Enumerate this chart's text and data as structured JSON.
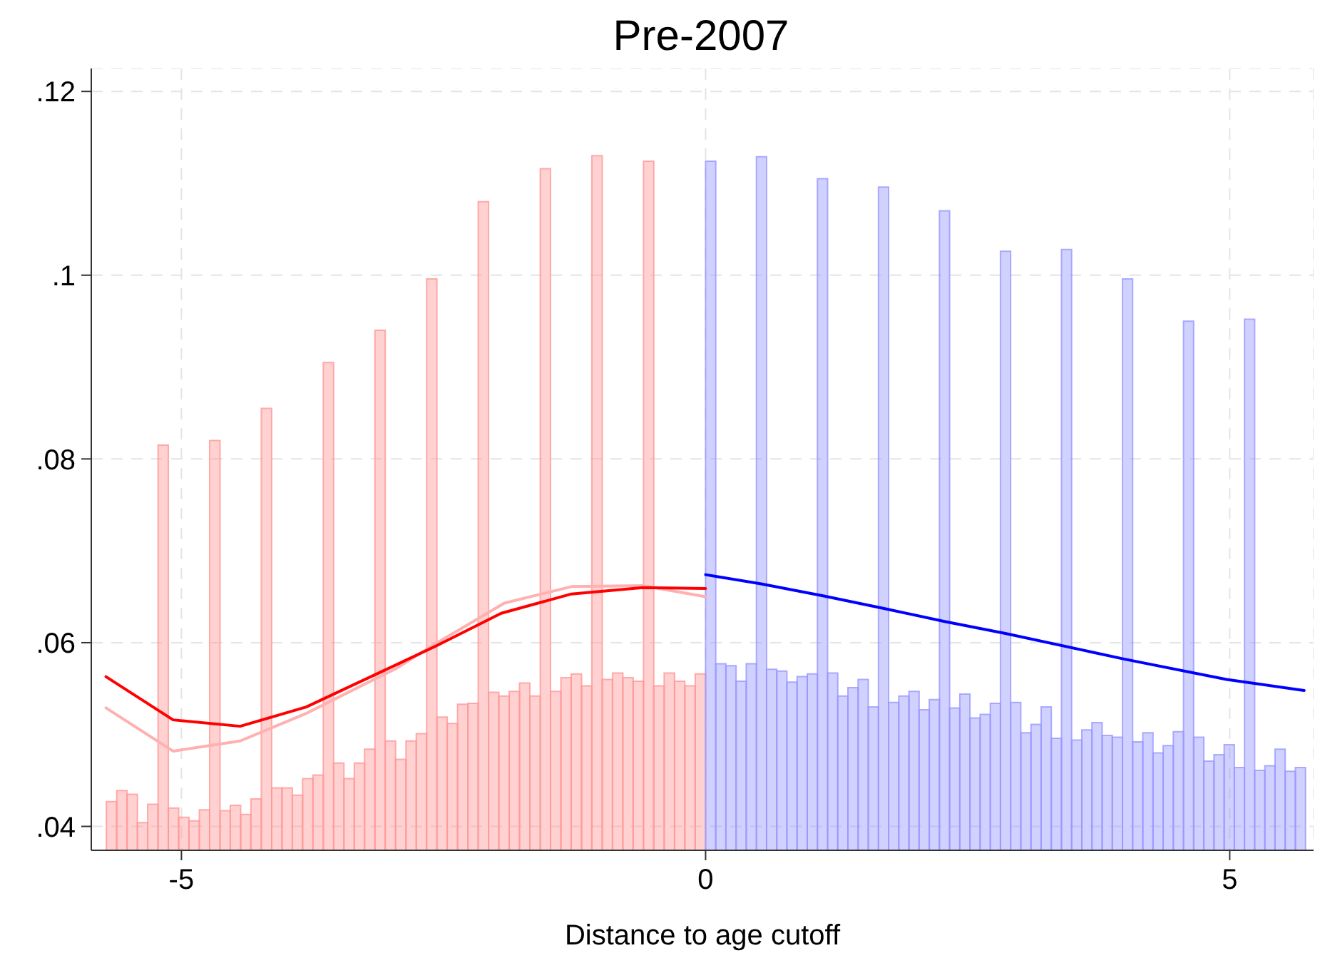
{
  "chart_data": {
    "type": "histogram",
    "title": "Pre-2007",
    "xlabel": "Distance to age cutoff",
    "xlim": [
      -5.86,
      5.8
    ],
    "xticks": [
      -5,
      0,
      5
    ],
    "ylim": [
      0.0374,
      0.1225
    ],
    "yticks": [
      {
        "value": 0.04,
        "label": ".04"
      },
      {
        "value": 0.06,
        "label": ".06"
      },
      {
        "value": 0.08,
        "label": ".08"
      },
      {
        "value": 0.1,
        "label": ".1"
      },
      {
        "value": 0.12,
        "label": ".12"
      }
    ],
    "grid": true,
    "series": [
      {
        "color": "#ff9999",
        "bins": [
          -5.716,
          -5.617,
          -5.519,
          -5.42,
          -5.322,
          -5.223,
          -5.125,
          -5.026,
          -4.928,
          -4.829,
          -4.731,
          -4.632,
          -4.534,
          -4.435,
          -4.337,
          -4.238,
          -4.139,
          -4.041,
          -3.942,
          -3.844,
          -3.745,
          -3.647,
          -3.548,
          -3.45,
          -3.351,
          -3.253,
          -3.154,
          -3.056,
          -2.957,
          -2.858,
          -2.76,
          -2.661,
          -2.563,
          -2.464,
          -2.366,
          -2.267,
          -2.169,
          -2.07,
          -1.972,
          -1.873,
          -1.775,
          -1.676,
          -1.577,
          -1.479,
          -1.38,
          -1.282,
          -1.183,
          -1.085,
          -0.986,
          -0.888,
          -0.789,
          -0.691,
          -0.592,
          -0.494,
          -0.395,
          -0.296,
          -0.198,
          -0.099,
          0
        ],
        "values": [
          0.0427,
          0.0439,
          0.0435,
          0.0404,
          0.0424,
          0.0815,
          0.042,
          0.041,
          0.0406,
          0.0418,
          0.082,
          0.0417,
          0.0423,
          0.0413,
          0.043,
          0.0855,
          0.0442,
          0.0442,
          0.0434,
          0.0452,
          0.0456,
          0.0905,
          0.0469,
          0.0452,
          0.0469,
          0.0484,
          0.094,
          0.0493,
          0.0473,
          0.0493,
          0.0501,
          0.0996,
          0.0519,
          0.0512,
          0.0533,
          0.0534,
          0.108,
          0.0546,
          0.0542,
          0.0547,
          0.0556,
          0.0542,
          0.1116,
          0.0547,
          0.0562,
          0.0566,
          0.0553,
          0.113,
          0.056,
          0.0567,
          0.0562,
          0.0558,
          0.1124,
          0.0553,
          0.0567,
          0.0558,
          0.0553,
          0.0566
        ]
      },
      {
        "color": "#9999ff",
        "bins": [
          0,
          0.097,
          0.194,
          0.291,
          0.388,
          0.485,
          0.582,
          0.679,
          0.776,
          0.873,
          0.97,
          1.067,
          1.164,
          1.261,
          1.358,
          1.455,
          1.552,
          1.649,
          1.746,
          1.843,
          1.94,
          2.037,
          2.134,
          2.231,
          2.328,
          2.425,
          2.522,
          2.619,
          2.716,
          2.813,
          2.91,
          3.007,
          3.104,
          3.201,
          3.298,
          3.395,
          3.492,
          3.589,
          3.686,
          3.783,
          3.88,
          3.977,
          4.074,
          4.171,
          4.268,
          4.365,
          4.462,
          4.559,
          4.656,
          4.753,
          4.85,
          4.947,
          5.044,
          5.141,
          5.238,
          5.335,
          5.432,
          5.529,
          5.626,
          5.723
        ],
        "values": [
          0.1124,
          0.0577,
          0.0575,
          0.0558,
          0.0577,
          0.1129,
          0.0571,
          0.0569,
          0.0557,
          0.0563,
          0.0566,
          0.1105,
          0.0567,
          0.0542,
          0.0551,
          0.056,
          0.053,
          0.1096,
          0.0535,
          0.0542,
          0.0547,
          0.0527,
          0.0538,
          0.107,
          0.0529,
          0.0544,
          0.0518,
          0.0522,
          0.0534,
          0.1026,
          0.0535,
          0.0502,
          0.0511,
          0.053,
          0.0496,
          0.1028,
          0.0494,
          0.0505,
          0.0513,
          0.0499,
          0.0497,
          0.0996,
          0.0492,
          0.0502,
          0.048,
          0.0488,
          0.0503,
          0.095,
          0.0497,
          0.0471,
          0.0478,
          0.0489,
          0.0464,
          0.0952,
          0.0461,
          0.0466,
          0.0484,
          0.046,
          0.0464
        ]
      },
      {
        "type": "line",
        "color": "#ffb0b0",
        "x": [
          -5.72,
          -5.08,
          -4.44,
          -3.81,
          -2.95,
          -2.56,
          -1.92,
          -1.28,
          -0.6,
          0
        ],
        "values": [
          0.0529,
          0.0482,
          0.0493,
          0.0523,
          0.0572,
          0.06,
          0.0643,
          0.0661,
          0.0662,
          0.065
        ]
      },
      {
        "type": "line",
        "color": "#ff0000",
        "x": [
          -5.72,
          -5.08,
          -4.44,
          -3.81,
          -2.95,
          -2.56,
          -1.95,
          -1.28,
          -0.6,
          0
        ],
        "values": [
          0.0563,
          0.0516,
          0.0509,
          0.053,
          0.0576,
          0.0597,
          0.0632,
          0.0653,
          0.066,
          0.0659
        ]
      },
      {
        "type": "line",
        "color": "#0000ff",
        "x": [
          0,
          0.53,
          1.12,
          1.71,
          2.28,
          2.86,
          4.0,
          4.97,
          5.71
        ],
        "values": [
          0.0674,
          0.0664,
          0.0651,
          0.0637,
          0.0623,
          0.061,
          0.0582,
          0.056,
          0.0548
        ]
      }
    ]
  }
}
